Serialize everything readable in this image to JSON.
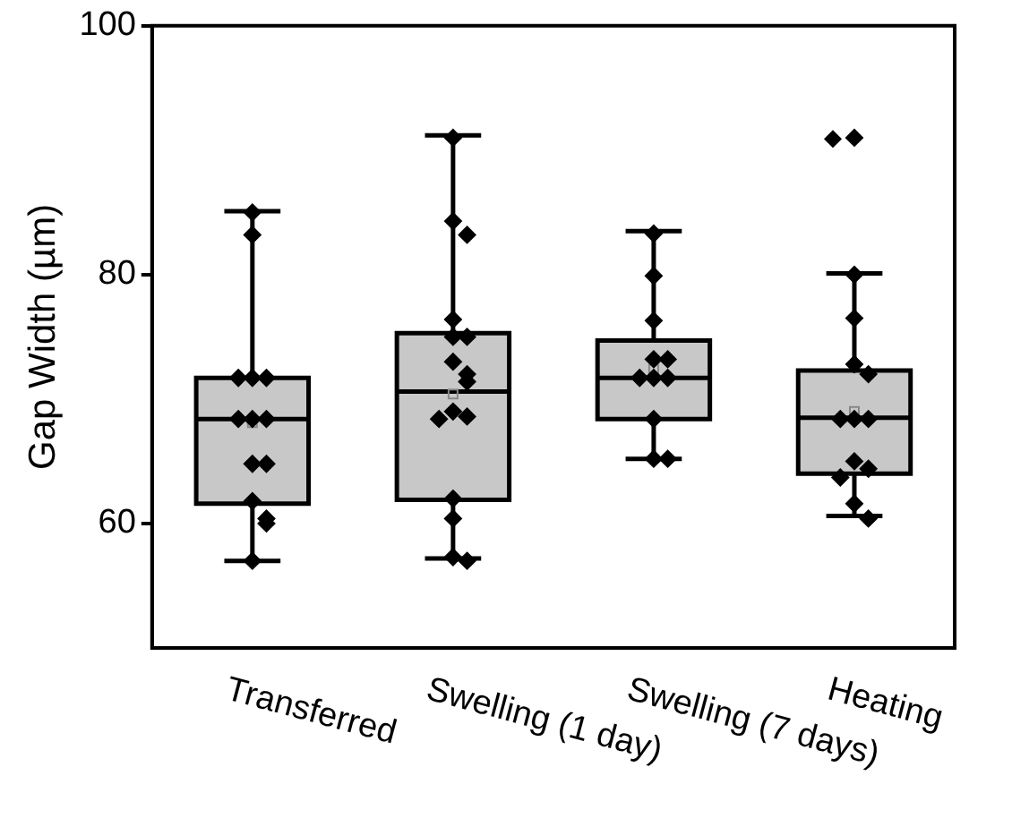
{
  "chart_data": {
    "type": "box",
    "ylabel": "Gap Width (µm)",
    "categories": [
      "Transferred",
      "Swelling (1 day)",
      "Swelling (7 days)",
      "Heating"
    ],
    "ylim": [
      50,
      100
    ],
    "yticks": [
      60,
      80,
      100
    ],
    "grid": false,
    "legend": false,
    "color": "#c8c8c8",
    "boxes": [
      {
        "low": 57,
        "q1": 61.6,
        "median": 68.4,
        "q3": 71.7,
        "high": 85.1,
        "mean": 68.1
      },
      {
        "low": 57.2,
        "q1": 61.9,
        "median": 70.6,
        "q3": 75.3,
        "high": 91.2,
        "mean": 70.4
      },
      {
        "low": 65.2,
        "q1": 68.4,
        "median": 71.7,
        "q3": 74.7,
        "high": 83.5,
        "mean": 72.4
      },
      {
        "low": 60.6,
        "q1": 64,
        "median": 68.5,
        "q3": 72.3,
        "high": 80.1,
        "mean": 69,
        "outliers": [
          90.9
        ]
      }
    ],
    "series": [
      {
        "type": "scatter",
        "color": "#000000",
        "marker": "diamond",
        "x": [
          "Transferred",
          "Transferred",
          "Transferred",
          "Transferred",
          "Transferred",
          "Transferred",
          "Transferred",
          "Transferred",
          "Transferred",
          "Transferred",
          "Transferred",
          "Transferred",
          "Transferred",
          "Transferred",
          "Swelling (1 day)",
          "Swelling (1 day)",
          "Swelling (1 day)",
          "Swelling (1 day)",
          "Swelling (1 day)",
          "Swelling (1 day)",
          "Swelling (1 day)",
          "Swelling (1 day)",
          "Swelling (1 day)",
          "Swelling (1 day)",
          "Swelling (1 day)",
          "Swelling (1 day)",
          "Swelling (1 day)",
          "Swelling (1 day)",
          "Swelling (1 day)",
          "Swelling (1 day)",
          "Swelling (7 days)",
          "Swelling (7 days)",
          "Swelling (7 days)",
          "Swelling (7 days)",
          "Swelling (7 days)",
          "Swelling (7 days)",
          "Swelling (7 days)",
          "Swelling (7 days)",
          "Swelling (7 days)",
          "Swelling (7 days)",
          "Swelling (7 days)",
          "Heating",
          "Heating",
          "Heating",
          "Heating",
          "Heating",
          "Heating",
          "Heating",
          "Heating",
          "Heating",
          "Heating",
          "Heating",
          "Heating",
          "Heating"
        ],
        "values": [
          85,
          83.2,
          71.7,
          71.7,
          71.7,
          68.4,
          68.4,
          68.4,
          64.8,
          64.8,
          61.8,
          60.4,
          60,
          57,
          91,
          84.3,
          83.2,
          76.4,
          75,
          75,
          73,
          72,
          71.4,
          69,
          68.6,
          68.4,
          62,
          60.4,
          57.3,
          57,
          83.3,
          79.9,
          76.3,
          73.2,
          73.2,
          71.7,
          71.7,
          71.7,
          68.4,
          65.2,
          65.2,
          91,
          80,
          76.5,
          72.8,
          72,
          68.4,
          68.4,
          68.4,
          65,
          64.4,
          63.7,
          61.6,
          60.4
        ]
      }
    ]
  }
}
